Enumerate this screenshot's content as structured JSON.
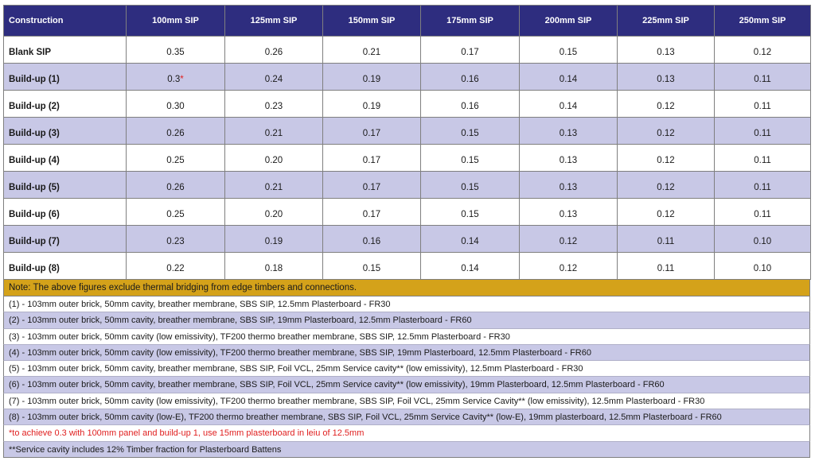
{
  "table": {
    "headers": [
      "Construction",
      "100mm SIP",
      "125mm SIP",
      "150mm SIP",
      "175mm SIP",
      "200mm SIP",
      "225mm SIP",
      "250mm SIP"
    ],
    "rows": [
      {
        "label": "Blank SIP",
        "values": [
          "0.35",
          "0.26",
          "0.21",
          "0.17",
          "0.15",
          "0.13",
          "0.12"
        ]
      },
      {
        "label": "Build-up (1)",
        "values": [
          "0.3",
          "0.24",
          "0.19",
          "0.16",
          "0.14",
          "0.13",
          "0.11"
        ],
        "first_marker": "*"
      },
      {
        "label": "Build-up (2)",
        "values": [
          "0.30",
          "0.23",
          "0.19",
          "0.16",
          "0.14",
          "0.12",
          "0.11"
        ]
      },
      {
        "label": "Build-up (3)",
        "values": [
          "0.26",
          "0.21",
          "0.17",
          "0.15",
          "0.13",
          "0.12",
          "0.11"
        ]
      },
      {
        "label": "Build-up (4)",
        "values": [
          "0.25",
          "0.20",
          "0.17",
          "0.15",
          "0.13",
          "0.12",
          "0.11"
        ]
      },
      {
        "label": "Build-up (5)",
        "values": [
          "0.26",
          "0.21",
          "0.17",
          "0.15",
          "0.13",
          "0.12",
          "0.11"
        ]
      },
      {
        "label": "Build-up (6)",
        "values": [
          "0.25",
          "0.20",
          "0.17",
          "0.15",
          "0.13",
          "0.12",
          "0.11"
        ]
      },
      {
        "label": "Build-up (7)",
        "values": [
          "0.23",
          "0.19",
          "0.16",
          "0.14",
          "0.12",
          "0.11",
          "0.10"
        ]
      },
      {
        "label": "Build-up (8)",
        "values": [
          "0.22",
          "0.18",
          "0.15",
          "0.14",
          "0.12",
          "0.11",
          "0.10"
        ]
      }
    ]
  },
  "note": "Note: The above figures exclude thermal bridging from edge timbers and connections.",
  "legend": [
    "(1) - 103mm outer brick, 50mm cavity, breather membrane, SBS SIP, 12.5mm Plasterboard - FR30",
    "(2) - 103mm outer brick, 50mm cavity, breather membrane, SBS SIP, 19mm Plasterboard, 12.5mm Plasterboard - FR60",
    "(3) - 103mm outer brick, 50mm cavity (low emissivity), TF200 thermo breather membrane, SBS SIP, 12.5mm Plasterboard - FR30",
    "(4) - 103mm outer brick, 50mm cavity (low emissivity), TF200 thermo breather membrane, SBS SIP, 19mm Plasterboard, 12.5mm Plasterboard - FR60",
    "(5) - 103mm outer brick, 50mm cavity, breather membrane, SBS SIP, Foil VCL, 25mm Service cavity** (low emissivity), 12.5mm Plasterboard - FR30",
    "(6) - 103mm outer brick, 50mm cavity, breather membrane, SBS SIP, Foil VCL, 25mm Service cavity** (low emissivity), 19mm Plasterboard, 12.5mm Plasterboard - FR60",
    "(7) - 103mm outer brick, 50mm cavity (low emissivity), TF200 thermo breather membrane, SBS SIP, Foil VCL, 25mm Service Cavity** (low emissivity), 12.5mm Plasterboard - FR30",
    "(8) - 103mm outer brick, 50mm cavity (low-E), TF200 thermo breather membrane, SBS SIP, Foil VCL, 25mm Service Cavity** (low-E), 19mm plasterboard, 12.5mm Plasterboard - FR60"
  ],
  "footnote_1": "*to achieve 0.3 with 100mm panel and build-up 1, use 15mm plasterboard in leiu of 12.5mm",
  "footnote_2": "**Service cavity includes 12% Timber fraction for Plasterboard Battens",
  "colors": {
    "header_bg": "#2e2d7f",
    "alt_row_bg": "#c8c8e6",
    "note_bg": "#d4a21a",
    "red_text": "#e02020"
  }
}
